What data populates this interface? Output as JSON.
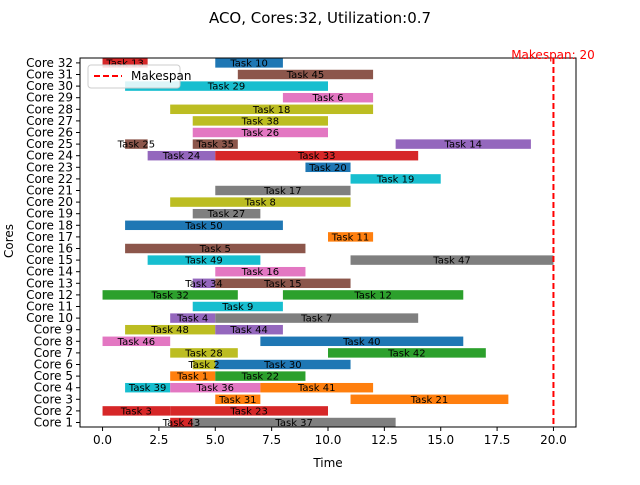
{
  "chart_data": {
    "type": "gantt",
    "title": "ACO, Cores:32, Utilization:0.7",
    "xlabel": "Time",
    "ylabel": "Cores",
    "xlim": [
      -1,
      21
    ],
    "xticks": [
      "0.0",
      "2.5",
      "5.0",
      "7.5",
      "10.0",
      "12.5",
      "15.0",
      "17.5",
      "20.0"
    ],
    "xtick_values": [
      0,
      2.5,
      5,
      7.5,
      10,
      12.5,
      15,
      17.5,
      20
    ],
    "cores": [
      "Core 1",
      "Core 2",
      "Core 3",
      "Core 4",
      "Core 5",
      "Core 6",
      "Core 7",
      "Core 8",
      "Core 9",
      "Core 10",
      "Core 11",
      "Core 12",
      "Core 13",
      "Core 14",
      "Core 15",
      "Core 16",
      "Core 17",
      "Core 18",
      "Core 19",
      "Core 20",
      "Core 21",
      "Core 22",
      "Core 23",
      "Core 24",
      "Core 25",
      "Core 26",
      "Core 27",
      "Core 28",
      "Core 29",
      "Core 30",
      "Core 31",
      "Core 32"
    ],
    "grid": false,
    "legend": {
      "position": "top-left",
      "entries": [
        "Makespan"
      ]
    },
    "makespan": {
      "value": 20,
      "label": "Makespan: 20",
      "color": "#ff0000"
    },
    "tasks": [
      {
        "core": 1,
        "task": "Task 43",
        "start": 3.0,
        "end": 4.0,
        "color": "#d62728"
      },
      {
        "core": 1,
        "task": "Task 37",
        "start": 4.0,
        "end": 13.0,
        "color": "#7f7f7f"
      },
      {
        "core": 2,
        "task": "Task 3",
        "start": 0.0,
        "end": 3.0,
        "color": "#d62728"
      },
      {
        "core": 2,
        "task": "Task 23",
        "start": 3.0,
        "end": 10.0,
        "color": "#d62728"
      },
      {
        "core": 3,
        "task": "Task 31",
        "start": 5.0,
        "end": 7.0,
        "color": "#ff7f0e"
      },
      {
        "core": 3,
        "task": "Task 21",
        "start": 11.0,
        "end": 18.0,
        "color": "#ff7f0e"
      },
      {
        "core": 4,
        "task": "Task 39",
        "start": 1.0,
        "end": 3.0,
        "color": "#17becf"
      },
      {
        "core": 4,
        "task": "Task 36",
        "start": 3.0,
        "end": 7.0,
        "color": "#e377c2"
      },
      {
        "core": 4,
        "task": "Task 41",
        "start": 7.0,
        "end": 12.0,
        "color": "#ff7f0e"
      },
      {
        "core": 5,
        "task": "Task 1",
        "start": 3.0,
        "end": 5.0,
        "color": "#ff7f0e"
      },
      {
        "core": 5,
        "task": "Task 22",
        "start": 5.0,
        "end": 9.0,
        "color": "#2ca02c"
      },
      {
        "core": 6,
        "task": "Task 2",
        "start": 4.0,
        "end": 5.0,
        "color": "#bcbd22"
      },
      {
        "core": 6,
        "task": "Task 30",
        "start": 5.0,
        "end": 11.0,
        "color": "#1f77b4"
      },
      {
        "core": 7,
        "task": "Task 28",
        "start": 3.0,
        "end": 6.0,
        "color": "#bcbd22"
      },
      {
        "core": 7,
        "task": "Task 42",
        "start": 10.0,
        "end": 17.0,
        "color": "#2ca02c"
      },
      {
        "core": 8,
        "task": "Task 46",
        "start": 0.0,
        "end": 3.0,
        "color": "#e377c2"
      },
      {
        "core": 8,
        "task": "Task 40",
        "start": 7.0,
        "end": 16.0,
        "color": "#1f77b4"
      },
      {
        "core": 9,
        "task": "Task 48",
        "start": 1.0,
        "end": 5.0,
        "color": "#bcbd22"
      },
      {
        "core": 9,
        "task": "Task 44",
        "start": 5.0,
        "end": 8.0,
        "color": "#9467bd"
      },
      {
        "core": 10,
        "task": "Task 4",
        "start": 3.0,
        "end": 5.0,
        "color": "#9467bd"
      },
      {
        "core": 10,
        "task": "Task 7",
        "start": 5.0,
        "end": 14.0,
        "color": "#7f7f7f"
      },
      {
        "core": 11,
        "task": "Task 9",
        "start": 4.0,
        "end": 8.0,
        "color": "#17becf"
      },
      {
        "core": 12,
        "task": "Task 32",
        "start": 0.0,
        "end": 6.0,
        "color": "#2ca02c"
      },
      {
        "core": 12,
        "task": "Task 12",
        "start": 8.0,
        "end": 16.0,
        "color": "#2ca02c"
      },
      {
        "core": 13,
        "task": "Task 34",
        "start": 4.0,
        "end": 5.0,
        "color": "#9467bd"
      },
      {
        "core": 13,
        "task": "Task 15",
        "start": 5.0,
        "end": 11.0,
        "color": "#8c564b"
      },
      {
        "core": 14,
        "task": "Task 16",
        "start": 5.0,
        "end": 9.0,
        "color": "#e377c2"
      },
      {
        "core": 15,
        "task": "Task 49",
        "start": 2.0,
        "end": 7.0,
        "color": "#17becf"
      },
      {
        "core": 15,
        "task": "Task 47",
        "start": 11.0,
        "end": 20.0,
        "color": "#7f7f7f"
      },
      {
        "core": 16,
        "task": "Task 5",
        "start": 1.0,
        "end": 9.0,
        "color": "#8c564b"
      },
      {
        "core": 17,
        "task": "Task 11",
        "start": 10.0,
        "end": 12.0,
        "color": "#ff7f0e"
      },
      {
        "core": 18,
        "task": "Task 50",
        "start": 1.0,
        "end": 8.0,
        "color": "#1f77b4"
      },
      {
        "core": 19,
        "task": "Task 27",
        "start": 4.0,
        "end": 7.0,
        "color": "#7f7f7f"
      },
      {
        "core": 20,
        "task": "Task 8",
        "start": 3.0,
        "end": 11.0,
        "color": "#bcbd22"
      },
      {
        "core": 21,
        "task": "Task 17",
        "start": 5.0,
        "end": 11.0,
        "color": "#7f7f7f"
      },
      {
        "core": 22,
        "task": "Task 19",
        "start": 11.0,
        "end": 15.0,
        "color": "#17becf"
      },
      {
        "core": 23,
        "task": "Task 20",
        "start": 9.0,
        "end": 11.0,
        "color": "#1f77b4"
      },
      {
        "core": 24,
        "task": "Task 24",
        "start": 2.0,
        "end": 5.0,
        "color": "#9467bd"
      },
      {
        "core": 24,
        "task": "Task 33",
        "start": 5.0,
        "end": 14.0,
        "color": "#d62728"
      },
      {
        "core": 25,
        "task": "Task 25",
        "start": 1.0,
        "end": 2.0,
        "color": "#8c564b"
      },
      {
        "core": 25,
        "task": "Task 35",
        "start": 4.0,
        "end": 6.0,
        "color": "#8c564b"
      },
      {
        "core": 25,
        "task": "Task 14",
        "start": 13.0,
        "end": 19.0,
        "color": "#9467bd"
      },
      {
        "core": 26,
        "task": "Task 26",
        "start": 4.0,
        "end": 10.0,
        "color": "#e377c2"
      },
      {
        "core": 27,
        "task": "Task 38",
        "start": 4.0,
        "end": 10.0,
        "color": "#bcbd22"
      },
      {
        "core": 28,
        "task": "Task 18",
        "start": 3.0,
        "end": 12.0,
        "color": "#bcbd22"
      },
      {
        "core": 29,
        "task": "Task 6",
        "start": 8.0,
        "end": 12.0,
        "color": "#e377c2"
      },
      {
        "core": 30,
        "task": "Task 29",
        "start": 1.0,
        "end": 10.0,
        "color": "#17becf"
      },
      {
        "core": 31,
        "task": "Task 45",
        "start": 6.0,
        "end": 12.0,
        "color": "#8c564b"
      },
      {
        "core": 32,
        "task": "Task 13",
        "start": 0.0,
        "end": 2.0,
        "color": "#d62728"
      },
      {
        "core": 32,
        "task": "Task 10",
        "start": 5.0,
        "end": 8.0,
        "color": "#1f77b4"
      }
    ]
  }
}
